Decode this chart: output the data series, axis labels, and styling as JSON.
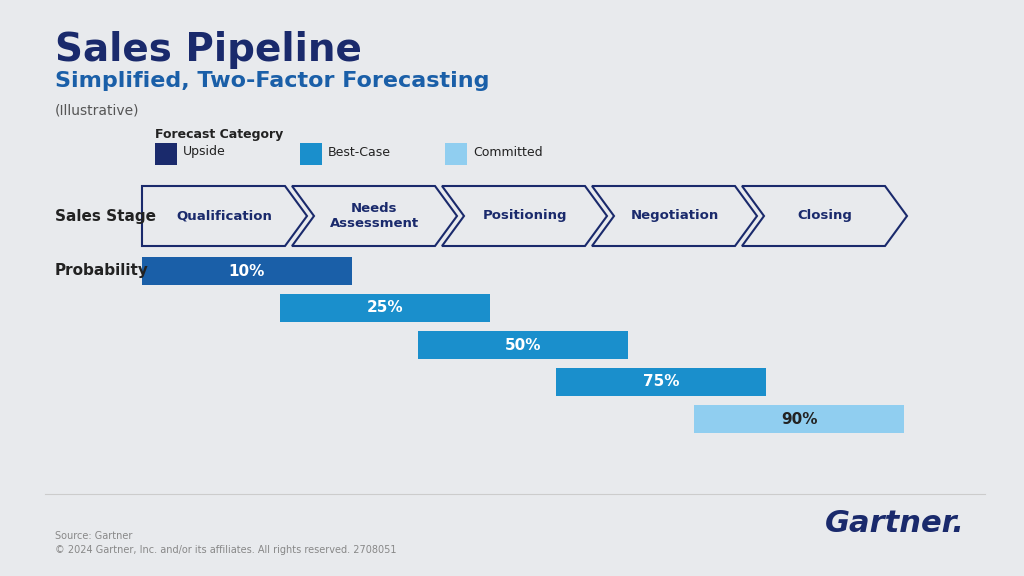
{
  "title": "Sales Pipeline",
  "subtitle": "Simplified, Two-Factor Forecasting",
  "illustrative": "(Illustrative)",
  "background_color": "#e8eaed",
  "title_color": "#1a2a6c",
  "subtitle_color": "#1a5fa8",
  "illustrative_color": "#555555",
  "stages": [
    "Qualification",
    "Needs\nAssessment",
    "Positioning",
    "Negotiation",
    "Closing"
  ],
  "probabilities": [
    "10%",
    "25%",
    "50%",
    "75%",
    "90%"
  ],
  "bar_colors": [
    "#1a5fa8",
    "#1a8fcc",
    "#1a8fcc",
    "#1a8fcc",
    "#90cef0"
  ],
  "forecast_categories": {
    "label": "Forecast Category",
    "items": [
      "Upside",
      "Best-Case",
      "Committed"
    ],
    "colors": [
      "#1a2a6c",
      "#1a8fcc",
      "#90cef0"
    ]
  },
  "source_text": "Source: Gartner\n© 2024 Gartner, Inc. and/or its affiliates. All rights reserved. 2708051",
  "gartner_logo": "Gartner.",
  "sales_stage_label": "Sales Stage",
  "probability_label": "Probability",
  "arrow_fill": "#e8eaed",
  "arrow_edge": "#1a2a6c"
}
